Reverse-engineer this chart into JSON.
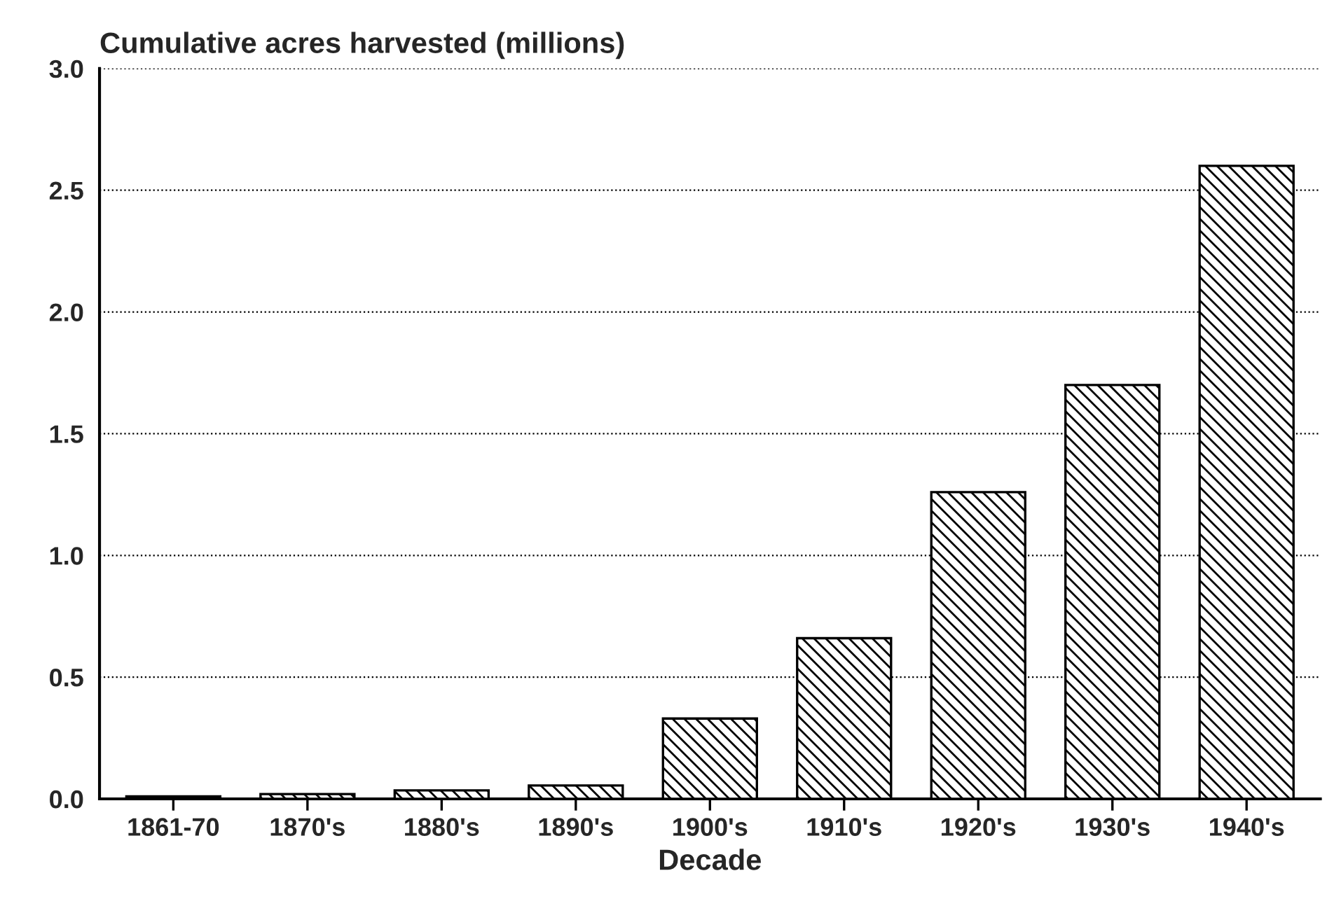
{
  "chart_data": {
    "type": "bar",
    "title": "Cumulative acres harvested (millions)",
    "xlabel": "Decade",
    "categories": [
      "1861-70",
      "1870's",
      "1880's",
      "1890's",
      "1900's",
      "1910's",
      "1920's",
      "1930's",
      "1940's"
    ],
    "values": [
      0.01,
      0.02,
      0.035,
      0.055,
      0.33,
      0.66,
      1.26,
      1.7,
      2.6
    ],
    "color": "#000000",
    "ylim": [
      0,
      3.0
    ],
    "yticks": [
      {
        "value": 0,
        "label": "0.0"
      },
      0.5,
      {
        "value": 1,
        "label": "1.0"
      },
      1.5,
      {
        "value": 2,
        "label": "2.0"
      },
      2.5,
      {
        "value": 3,
        "label": "3.0"
      }
    ],
    "grid": "y"
  }
}
